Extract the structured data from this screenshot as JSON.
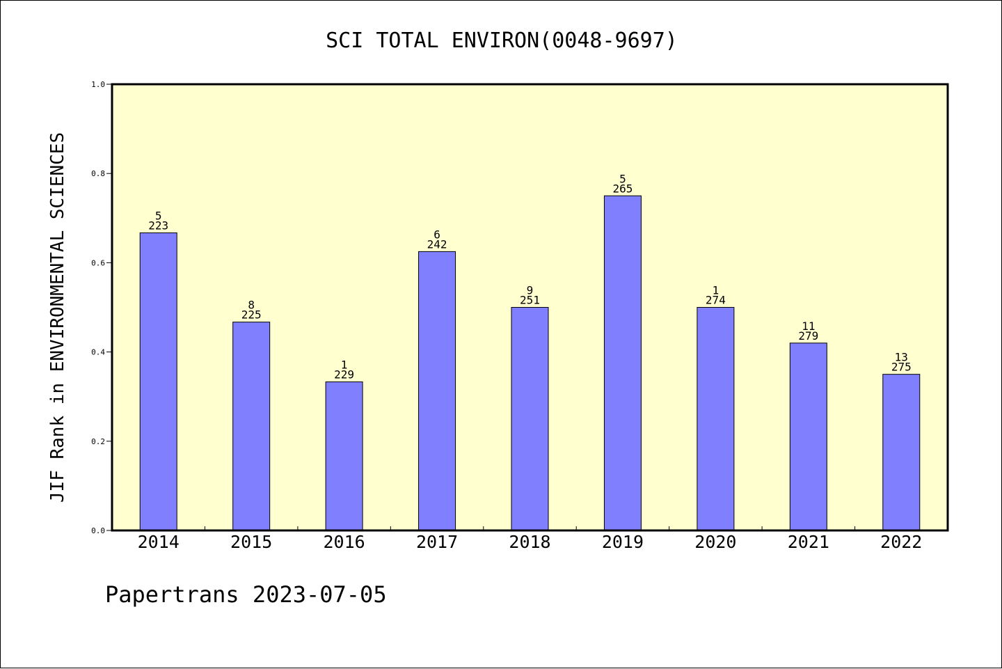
{
  "chart_data": {
    "type": "bar",
    "title": "SCI TOTAL ENVIRON(0048-9697)",
    "xlabel": "",
    "ylabel": "JIF Rank in ENVIRONMENTAL SCIENCES",
    "ylim": [
      0.0,
      1.0
    ],
    "yticks": [
      "0.0",
      "0.2",
      "0.4",
      "0.6",
      "0.8",
      "1.0"
    ],
    "categories": [
      "2014",
      "2015",
      "2016",
      "2017",
      "2018",
      "2019",
      "2020",
      "2021",
      "2022"
    ],
    "values": [
      0.667,
      0.467,
      0.333,
      0.625,
      0.5,
      0.75,
      0.5,
      0.42,
      0.35
    ],
    "label_top": [
      "5",
      "8",
      "1",
      "6",
      "9",
      "5",
      "1",
      "11",
      "13"
    ],
    "label_bottom": [
      "223",
      "225",
      "229",
      "242",
      "251",
      "265",
      "274",
      "279",
      "275"
    ],
    "grid": false,
    "legend": "none",
    "colors": {
      "plot_background": "#ffffd0",
      "bar_fill": "#8080ff",
      "bar_stroke": "#000000",
      "text": "#000000"
    }
  },
  "footer": {
    "text": "Papertrans 2023-07-05"
  }
}
